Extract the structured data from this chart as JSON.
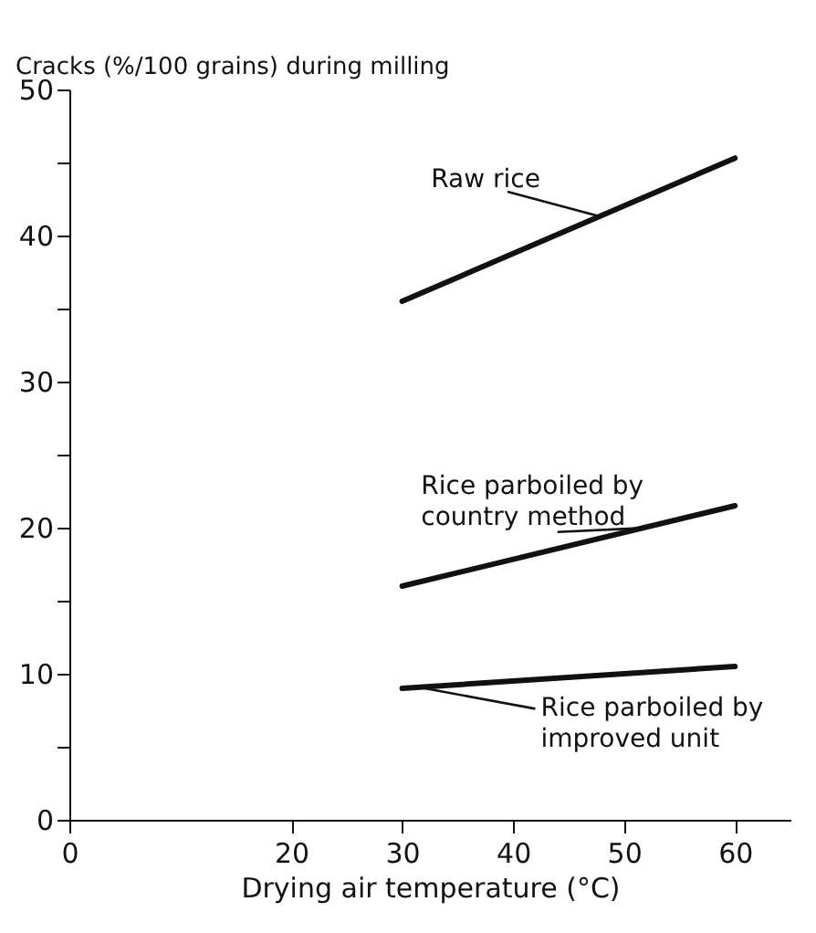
{
  "chart_data": {
    "type": "line",
    "ylabel": "Cracks (%/100 grains) during milling",
    "xlabel": "Drying air temperature (°C)",
    "x": [
      30,
      60
    ],
    "series": [
      {
        "name": "Raw rice",
        "color": "#111111",
        "values": [
          35.5,
          45.3
        ]
      },
      {
        "name": "Rice parboiled by\ncountry method",
        "color": "#111111",
        "values": [
          16,
          21.5
        ]
      },
      {
        "name": "Rice parboiled by\nimproved unit",
        "color": "#111111",
        "values": [
          9,
          10.5
        ]
      }
    ],
    "xlim": [
      0,
      65
    ],
    "xticks": [
      0,
      20,
      30,
      40,
      50,
      60
    ],
    "ylim": [
      0,
      50
    ],
    "yticks": [
      0,
      {
        "value": 5,
        "label": null
      },
      10,
      {
        "value": 15,
        "label": null
      },
      20,
      {
        "value": 25,
        "label": null
      },
      30,
      {
        "value": 35,
        "label": null
      },
      40,
      {
        "value": 45,
        "label": null
      },
      50
    ],
    "grid": false,
    "marker": "none",
    "line_style": "solid"
  }
}
